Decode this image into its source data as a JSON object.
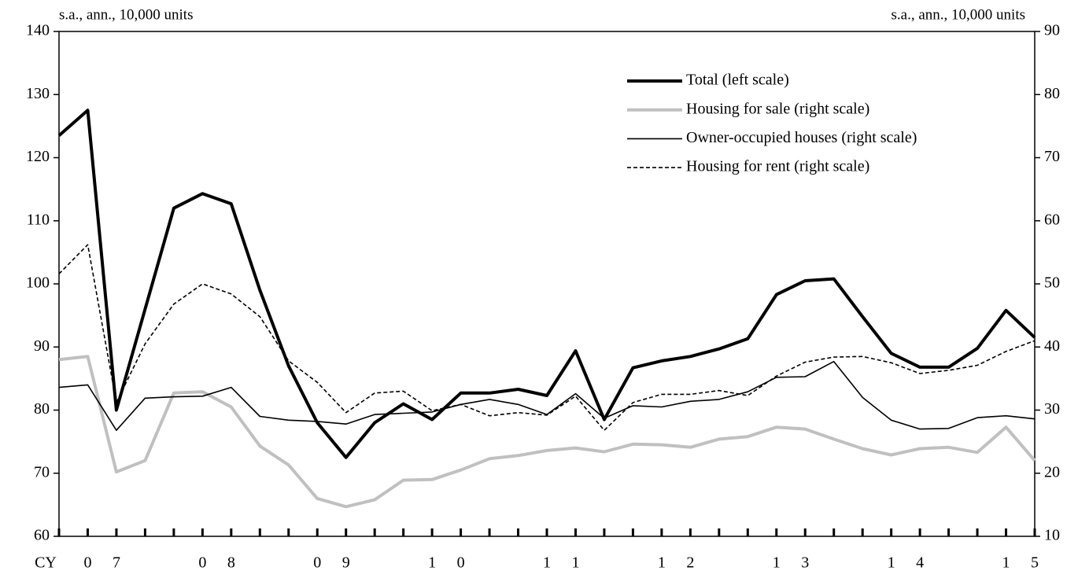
{
  "chart_data": {
    "type": "line",
    "y_unit_label": "s.a., ann., 10,000 units",
    "y2_unit_label": "s.a., ann., 10,000 units",
    "x_axis_label": "CY",
    "categories": [
      null,
      "0",
      "7",
      null,
      null,
      "0",
      "8",
      null,
      null,
      "0",
      "9",
      null,
      null,
      "1",
      "0",
      null,
      null,
      "1",
      "1",
      null,
      null,
      "1",
      "2",
      null,
      null,
      "1",
      "3",
      null,
      null,
      "1",
      "4",
      null,
      null,
      "1",
      "5"
    ],
    "ylim": [
      60,
      140
    ],
    "yticks": [
      60,
      70,
      80,
      90,
      100,
      110,
      120,
      130,
      140
    ],
    "y2lim": [
      10,
      90
    ],
    "y2ticks": [
      10,
      20,
      30,
      40,
      50,
      60,
      70,
      80,
      90
    ],
    "grid": false,
    "legend": "upper right",
    "series": [
      {
        "name": "Total (left scale)",
        "color": "#000000",
        "width": 4,
        "dash": "solid",
        "values": [
          123.5,
          127.5,
          80,
          96,
          112,
          114.3,
          112.7,
          99,
          87,
          78,
          72.5,
          78,
          81,
          78.5,
          82.7,
          82.7,
          83.3,
          82.3,
          89.4,
          78.5,
          86.7,
          87.8,
          88.5,
          89.7,
          91.3,
          98.3,
          100.5,
          100.8,
          94.8,
          89,
          86.8,
          86.8,
          89.8,
          95.8,
          91.5
        ]
      },
      {
        "name": "Housing for sale (right scale)",
        "color": "#c0c0c0",
        "width": 4,
        "dash": "solid",
        "axis": "y2",
        "values": [
          38,
          38.5,
          20.2,
          22,
          32.7,
          32.9,
          30.5,
          24.3,
          21.3,
          16,
          14.7,
          15.8,
          18.9,
          19,
          20.5,
          22.3,
          22.8,
          23.6,
          24,
          23.4,
          24.6,
          24.5,
          24.1,
          25.4,
          25.8,
          27.3,
          27,
          25.4,
          23.9,
          22.9,
          23.9,
          24.1,
          23.3,
          27.3,
          22
        ]
      },
      {
        "name": "Owner-occupied houses (right scale)",
        "color": "#000000",
        "width": 1.6,
        "dash": "solid",
        "axis": "y2",
        "values": [
          33.6,
          34,
          26.8,
          31.9,
          32.1,
          32.2,
          33.6,
          29,
          28.4,
          28.2,
          27.8,
          29.3,
          29.5,
          29.7,
          30.9,
          31.7,
          30.9,
          29.3,
          32.6,
          28.7,
          30.7,
          30.5,
          31.4,
          31.7,
          32.9,
          35.2,
          35.3,
          37.7,
          32,
          28.4,
          27,
          27.1,
          28.8,
          29.1,
          28.6
        ]
      },
      {
        "name": "Housing for rent (right scale)",
        "color": "#000000",
        "width": 1.6,
        "dash": "dashed",
        "axis": "y2",
        "values": [
          51.6,
          56.2,
          31.2,
          40.5,
          46.8,
          50,
          48.4,
          44.8,
          37.8,
          34.4,
          29.6,
          32.7,
          33,
          29.9,
          30.9,
          29.1,
          29.6,
          29.2,
          32.2,
          26.8,
          31.2,
          32.5,
          32.5,
          33.1,
          32.3,
          35.4,
          37.6,
          38.4,
          38.5,
          37.5,
          35.8,
          36.3,
          37.1,
          39.3,
          41
        ]
      }
    ]
  }
}
